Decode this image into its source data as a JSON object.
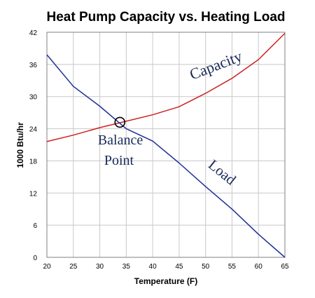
{
  "chart_data": {
    "type": "line",
    "title": "Heat Pump Capacity vs. Heating Load",
    "xlabel": "Temperature (F)",
    "ylabel": "1000 Btu/hr",
    "xlim": [
      20,
      65
    ],
    "ylim": [
      0,
      42
    ],
    "x_ticks": [
      20,
      25,
      30,
      35,
      40,
      45,
      50,
      55,
      60,
      65
    ],
    "y_ticks": [
      0,
      6,
      12,
      18,
      24,
      30,
      36,
      42
    ],
    "grid": "on",
    "series": [
      {
        "name": "Capacity",
        "color": "#cc2222",
        "points": [
          [
            20,
            21.6
          ],
          [
            25,
            22.8
          ],
          [
            30,
            24.2
          ],
          [
            35,
            25.4
          ],
          [
            40,
            26.6
          ],
          [
            45,
            28.1
          ],
          [
            50,
            30.6
          ],
          [
            55,
            33.4
          ],
          [
            60,
            36.9
          ],
          [
            65,
            41.8
          ]
        ]
      },
      {
        "name": "Load",
        "color": "#1f2f9a",
        "points": [
          [
            20,
            37.8
          ],
          [
            25,
            31.9
          ],
          [
            30,
            28.2
          ],
          [
            35,
            24.0
          ],
          [
            40,
            21.7
          ],
          [
            45,
            17.6
          ],
          [
            50,
            13.2
          ],
          [
            55,
            9.0
          ],
          [
            60,
            4.3
          ],
          [
            65,
            0.0
          ]
        ]
      }
    ],
    "annotations": [
      {
        "text": "Capacity",
        "series": "Capacity"
      },
      {
        "text": "Load",
        "series": "Load"
      },
      {
        "text": "Balance",
        "line": 1
      },
      {
        "text": "Point",
        "line": 2
      }
    ],
    "marker": {
      "name": "Balance Point",
      "x": 33.8,
      "y": 25.2
    }
  }
}
